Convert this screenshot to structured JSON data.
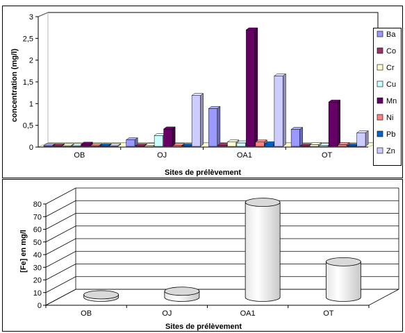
{
  "chart_data": [
    {
      "type": "bar",
      "style": "3d-column",
      "categories": [
        "OB",
        "OJ",
        "OA1",
        "OT"
      ],
      "xlabel": "Sites de prélèvement",
      "ylabel": "concentration (mg/l)",
      "ylim": [
        0,
        3
      ],
      "yticks": [
        "0",
        "0,5",
        "1",
        "1,5",
        "2",
        "2,5",
        "3"
      ],
      "grid": false,
      "legend_position": "right",
      "series": [
        {
          "name": "Ba",
          "color": "#9999FF",
          "values": [
            0.0,
            0.15,
            0.87,
            0.39
          ]
        },
        {
          "name": "Co",
          "color": "#993366",
          "values": [
            0.0,
            0.0,
            0.03,
            0.0
          ]
        },
        {
          "name": "Cr",
          "color": "#FFFFCC",
          "values": [
            0.0,
            0.02,
            0.1,
            0.04
          ]
        },
        {
          "name": "Cu",
          "color": "#CCFFFF",
          "values": [
            0.0,
            0.25,
            0.08,
            0.02
          ]
        },
        {
          "name": "Mn",
          "color": "#660066",
          "values": [
            0.05,
            0.4,
            2.68,
            1.02
          ]
        },
        {
          "name": "Ni",
          "color": "#FF8080",
          "values": [
            0.0,
            0.02,
            0.1,
            0.04
          ]
        },
        {
          "name": "Pb",
          "color": "#0066CC",
          "values": [
            0.0,
            0.01,
            0.06,
            0.01
          ]
        },
        {
          "name": "Zn",
          "color": "#CCCCFF",
          "values": [
            0.0,
            1.17,
            1.62,
            0.31
          ]
        }
      ]
    },
    {
      "type": "bar",
      "style": "3d-cylinder",
      "categories": [
        "OB",
        "OJ",
        "OA1",
        "OT"
      ],
      "xlabel": "Sites de prélèvement",
      "ylabel": "[Fe] en mg/l",
      "ylim": [
        0,
        80
      ],
      "yticks": [
        "0",
        "10",
        "20",
        "30",
        "40",
        "50",
        "60",
        "70",
        "80"
      ],
      "grid": true,
      "series": [
        {
          "name": "Fe",
          "color": "#FFFFFF",
          "values": [
            2,
            4.8,
            75,
            28
          ]
        }
      ]
    }
  ]
}
